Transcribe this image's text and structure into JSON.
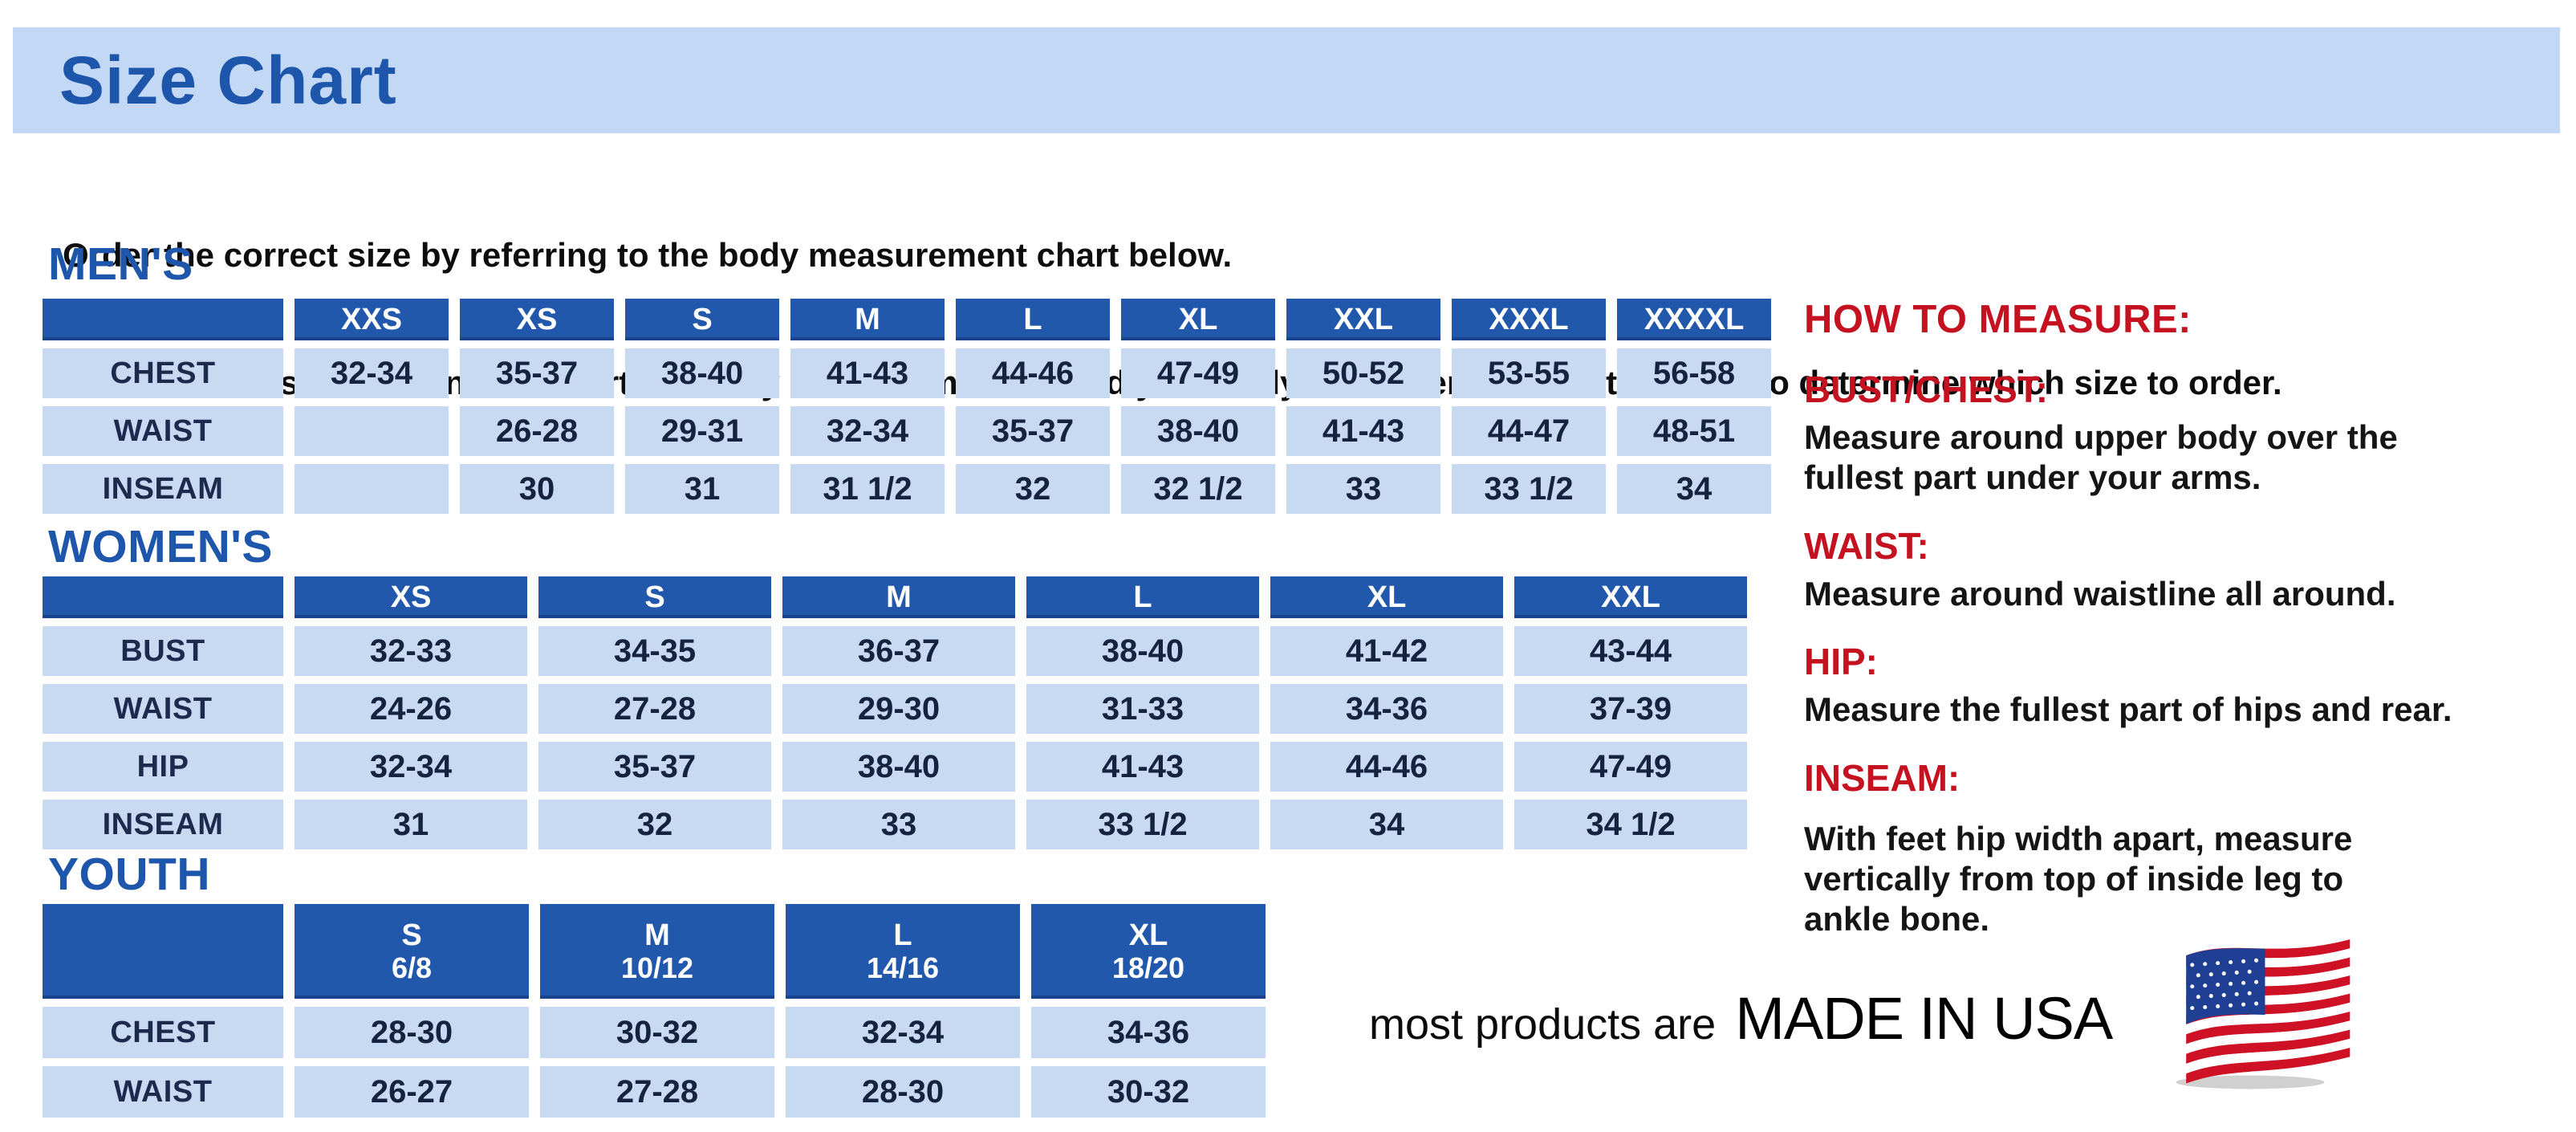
{
  "banner": {
    "title": "Size Chart"
  },
  "intro": {
    "line1": "Order the correct size by referring to the body measurement chart below.",
    "line2": "Measurements shown on size chart are body measurements.  Find your body measurements on the chart to determine which size to order."
  },
  "sections": {
    "mens": {
      "heading": "MEN'S",
      "columns": [
        "XXS",
        "XS",
        "S",
        "M",
        "L",
        "XL",
        "XXL",
        "XXXL",
        "XXXXL"
      ],
      "rows": [
        {
          "label": "CHEST",
          "values": [
            "32-34",
            "35-37",
            "38-40",
            "41-43",
            "44-46",
            "47-49",
            "50-52",
            "53-55",
            "56-58"
          ]
        },
        {
          "label": "WAIST",
          "values": [
            "",
            "26-28",
            "29-31",
            "32-34",
            "35-37",
            "38-40",
            "41-43",
            "44-47",
            "48-51"
          ]
        },
        {
          "label": "INSEAM",
          "values": [
            "",
            "30",
            "31",
            "31 1/2",
            "32",
            "32 1/2",
            "33",
            "33 1/2",
            "34"
          ]
        }
      ]
    },
    "womens": {
      "heading": "WOMEN'S",
      "columns": [
        "XS",
        "S",
        "M",
        "L",
        "XL",
        "XXL"
      ],
      "rows": [
        {
          "label": "BUST",
          "values": [
            "32-33",
            "34-35",
            "36-37",
            "38-40",
            "41-42",
            "43-44"
          ]
        },
        {
          "label": "WAIST",
          "values": [
            "24-26",
            "27-28",
            "29-30",
            "31-33",
            "34-36",
            "37-39"
          ]
        },
        {
          "label": "HIP",
          "values": [
            "32-34",
            "35-37",
            "38-40",
            "41-43",
            "44-46",
            "47-49"
          ]
        },
        {
          "label": "INSEAM",
          "values": [
            "31",
            "32",
            "33",
            "33 1/2",
            "34",
            "34 1/2"
          ]
        }
      ]
    },
    "youth": {
      "heading": "YOUTH",
      "columns": [
        {
          "label": "S",
          "sub": "6/8"
        },
        {
          "label": "M",
          "sub": "10/12"
        },
        {
          "label": "L",
          "sub": "14/16"
        },
        {
          "label": "XL",
          "sub": "18/20"
        }
      ],
      "rows": [
        {
          "label": "CHEST",
          "values": [
            "28-30",
            "30-32",
            "32-34",
            "34-36"
          ]
        },
        {
          "label": "WAIST",
          "values": [
            "26-27",
            "27-28",
            "28-30",
            "30-32"
          ]
        }
      ]
    }
  },
  "how_to_measure": {
    "heading": "HOW TO MEASURE:",
    "items": [
      {
        "label": "BUST/CHEST:",
        "text": "Measure around upper body over the\nfullest part under your arms."
      },
      {
        "label": "WAIST:",
        "text": "Measure around waistline all around."
      },
      {
        "label": "HIP:",
        "text": "Measure the fullest part of hips and rear."
      },
      {
        "label": "INSEAM:",
        "text": "With feet hip width apart, measure\nvertically from top of inside leg to\nankle bone."
      }
    ]
  },
  "footer": {
    "prefix": "most products are",
    "emphasis": "MADE IN USA",
    "flag_icon": "us-flag-icon"
  },
  "colors": {
    "header_blue": "#2158ac",
    "cell_blue": "#c8daf2",
    "banner_blue": "#c2d8f4",
    "heading_blue": "#1d56ab",
    "accent_red": "#c51220",
    "flag_red": "#cf1126",
    "flag_blue": "#1e3f94"
  }
}
